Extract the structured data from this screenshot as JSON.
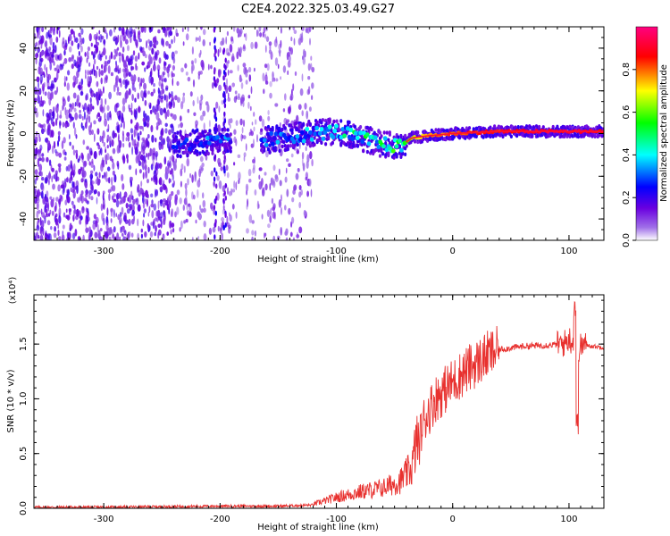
{
  "title": "C2E4.2022.325.03.49.G27",
  "chart_data": [
    {
      "type": "heatmap",
      "xlabel": "Height of straight line (km)",
      "ylabel": "Frequency (Hz)",
      "xlim": [
        -360,
        130
      ],
      "ylim": [
        -50,
        50
      ],
      "x_ticks": [
        -300,
        -200,
        -100,
        0,
        100
      ],
      "x_tick_labels": [
        "-300",
        "-200",
        "-100",
        "0",
        "100"
      ],
      "y_ticks": [
        -40,
        -20,
        0,
        20,
        40
      ],
      "y_tick_labels": [
        "-40",
        "-20",
        "0",
        "20",
        "40"
      ],
      "colorbar": {
        "label": "Normalized spectral amplitude",
        "range": [
          0,
          1
        ],
        "ticks": [
          0.0,
          0.2,
          0.4,
          0.6,
          0.8
        ],
        "tick_labels": [
          "0.0",
          "0.2",
          "0.4",
          "0.6",
          "0.8"
        ],
        "colors": [
          "#ffffff",
          "#a070e8",
          "#6a00e0",
          "#0000ff",
          "#00ffff",
          "#00ff00",
          "#ffff00",
          "#ff0000",
          "#ff0080"
        ]
      },
      "signal_track": [
        {
          "x": -240,
          "f": -5,
          "amp": 0.25
        },
        {
          "x": -210,
          "f": -4,
          "amp": 0.3
        },
        {
          "x": -160,
          "f": -3,
          "amp": 0.3
        },
        {
          "x": -120,
          "f": 0,
          "amp": 0.35
        },
        {
          "x": -100,
          "f": 1,
          "amp": 0.4
        },
        {
          "x": -80,
          "f": -2,
          "amp": 0.45
        },
        {
          "x": -60,
          "f": -5,
          "amp": 0.5
        },
        {
          "x": -45,
          "f": -6,
          "amp": 0.5
        },
        {
          "x": -35,
          "f": -2,
          "amp": 0.7
        },
        {
          "x": -20,
          "f": -1,
          "amp": 0.8
        },
        {
          "x": 0,
          "f": 0,
          "amp": 0.85
        },
        {
          "x": 40,
          "f": 1,
          "amp": 0.9
        },
        {
          "x": 80,
          "f": 1,
          "amp": 0.95
        },
        {
          "x": 110,
          "f": 1,
          "amp": 0.95
        },
        {
          "x": 130,
          "f": 1,
          "amp": 0.9
        }
      ],
      "grid": false,
      "background_noise": "scattered purple speckle from -360 to -120 km, strongest from -360 to -240 km"
    },
    {
      "type": "line",
      "xlabel": "Height of straight line (km)",
      "ylabel": "SNR (10 * v/v)",
      "y_scale_label": "(x10⁴)",
      "xlim": [
        -360,
        130
      ],
      "ylim": [
        0,
        1.95
      ],
      "x_ticks": [
        -300,
        -200,
        -100,
        0,
        100
      ],
      "x_tick_labels": [
        "-300",
        "-200",
        "-100",
        "0",
        "100"
      ],
      "y_ticks": [
        0.0,
        0.5,
        1.0,
        1.5
      ],
      "y_tick_labels": [
        "0.0",
        "0.5",
        "1.0",
        "1.5"
      ],
      "grid": false,
      "series": [
        {
          "color": "#e8312f",
          "x": [
            -360,
            -300,
            -250,
            -200,
            -150,
            -120,
            -100,
            -80,
            -60,
            -45,
            -35,
            -30,
            -25,
            -20,
            -15,
            -10,
            -5,
            0,
            10,
            20,
            30,
            40,
            60,
            80,
            95,
            100,
            105,
            108,
            112,
            120,
            130
          ],
          "y": [
            0.01,
            0.01,
            0.015,
            0.02,
            0.02,
            0.03,
            0.08,
            0.12,
            0.15,
            0.2,
            0.3,
            0.55,
            0.8,
            0.9,
            1.0,
            1.05,
            1.1,
            1.15,
            1.25,
            1.32,
            1.4,
            1.45,
            1.48,
            1.49,
            1.5,
            1.55,
            1.5,
            1.45,
            1.5,
            1.48,
            1.47
          ]
        }
      ]
    }
  ]
}
